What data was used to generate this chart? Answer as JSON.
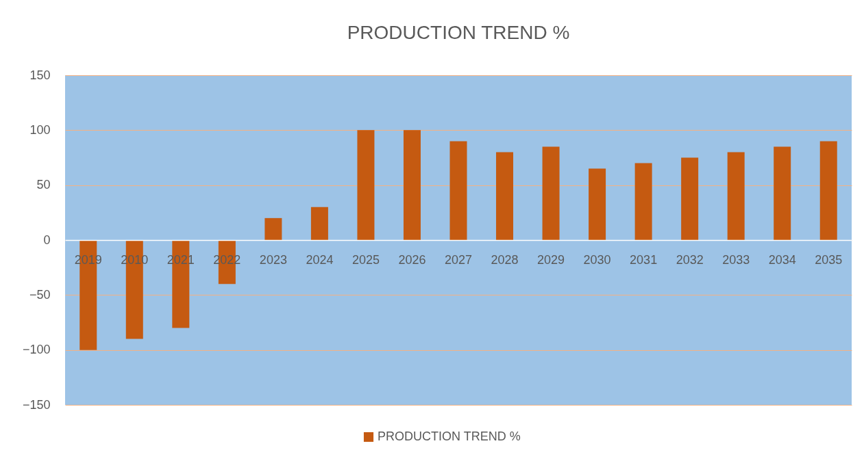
{
  "chart_data": {
    "type": "bar",
    "title": "PRODUCTION TREND %",
    "categories": [
      "2019",
      "2010",
      "2021",
      "2022",
      "2023",
      "2024",
      "2025",
      "2026",
      "2027",
      "2028",
      "2029",
      "2030",
      "2031",
      "2032",
      "2033",
      "2034",
      "2035"
    ],
    "series": [
      {
        "name": "PRODUCTION TREND %",
        "color": "#c55a11",
        "values": [
          -100,
          -90,
          -80,
          -40,
          20,
          30,
          100,
          100,
          90,
          80,
          85,
          65,
          70,
          75,
          80,
          85,
          90
        ]
      }
    ],
    "ylim": [
      -150,
      150
    ],
    "yticks": [
      -150,
      -100,
      -50,
      0,
      50,
      100,
      150
    ],
    "grid": "y",
    "legend": "bottom"
  }
}
